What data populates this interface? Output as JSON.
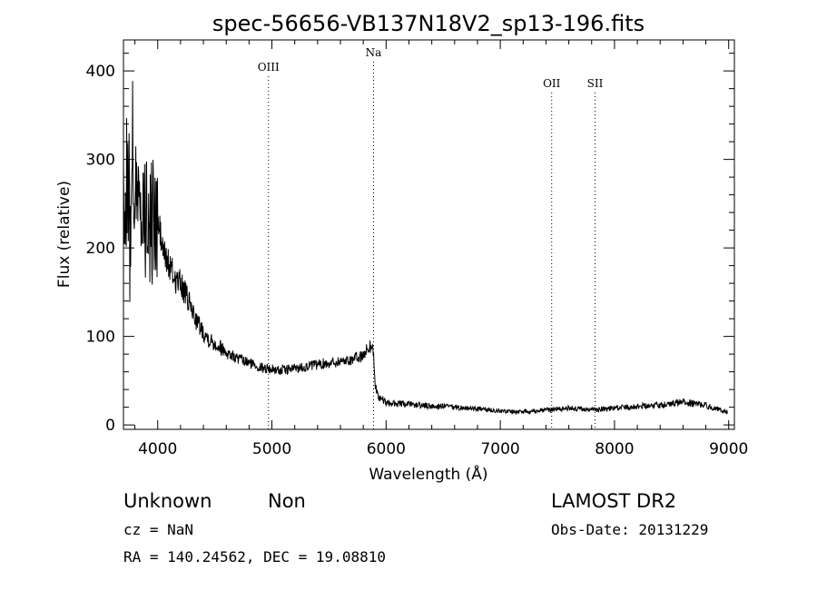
{
  "chart_data": {
    "type": "line",
    "title": "spec-56656-VB137N18V2_sp13-196.fits",
    "xlabel": "Wavelength (Å)",
    "ylabel": "Flux (relative)",
    "xlim": [
      3700,
      9050
    ],
    "ylim": [
      -5,
      435
    ],
    "xticks": [
      4000,
      5000,
      6000,
      7000,
      8000,
      9000
    ],
    "yticks": [
      0,
      100,
      200,
      300,
      400
    ],
    "grid": false,
    "series": [
      {
        "x": [
          3700,
          3720,
          3740,
          3760,
          3780,
          3800,
          3820,
          3840,
          3860,
          3880,
          3900,
          3920,
          3940,
          3960,
          3980,
          4000,
          4050,
          4100,
          4150,
          4200,
          4250,
          4300,
          4350,
          4400,
          4450,
          4500,
          4550,
          4600,
          4650,
          4700,
          4750,
          4800,
          4850,
          4900,
          4950,
          5000,
          5050,
          5100,
          5150,
          5200,
          5250,
          5300,
          5350,
          5400,
          5450,
          5500,
          5550,
          5600,
          5650,
          5700,
          5750,
          5800,
          5830,
          5850,
          5870,
          5890,
          5900,
          5920,
          5950,
          6000,
          6050,
          6100,
          6200,
          6300,
          6400,
          6500,
          6600,
          6700,
          6800,
          6900,
          7000,
          7100,
          7200,
          7300,
          7400,
          7500,
          7600,
          7700,
          7800,
          7900,
          8000,
          8100,
          8200,
          8300,
          8400,
          8500,
          8600,
          8700,
          8800,
          8900,
          8990
        ],
        "y": [
          270,
          220,
          330,
          180,
          300,
          250,
          240,
          280,
          210,
          270,
          230,
          260,
          220,
          240,
          215,
          230,
          195,
          180,
          165,
          160,
          145,
          130,
          115,
          105,
          97,
          92,
          88,
          82,
          78,
          75,
          72,
          70,
          68,
          65,
          64,
          63,
          62,
          62,
          63,
          64,
          65,
          66,
          67,
          68,
          69,
          70,
          71,
          72,
          73,
          74,
          76,
          78,
          85,
          88,
          90,
          82,
          50,
          35,
          30,
          25,
          24,
          24,
          23,
          22,
          21,
          21,
          20,
          19,
          18,
          17,
          16,
          15,
          15,
          16,
          17,
          18,
          19,
          18,
          17,
          18,
          19,
          20,
          21,
          22,
          23,
          24,
          26,
          24,
          22,
          18,
          15
        ]
      }
    ],
    "lines": [
      {
        "label": "OIII",
        "x": 4970
      },
      {
        "label": "Na",
        "x": 5890
      },
      {
        "label": "OII",
        "x": 7450
      },
      {
        "label": "SII",
        "x": 7830
      }
    ]
  },
  "info": {
    "class": "Unknown",
    "subclass": "Non",
    "survey": "LAMOST DR2",
    "cz": "cz = NaN",
    "obs_date": "Obs-Date: 20131229",
    "coords": "RA = 140.24562, DEC =  19.08810"
  }
}
